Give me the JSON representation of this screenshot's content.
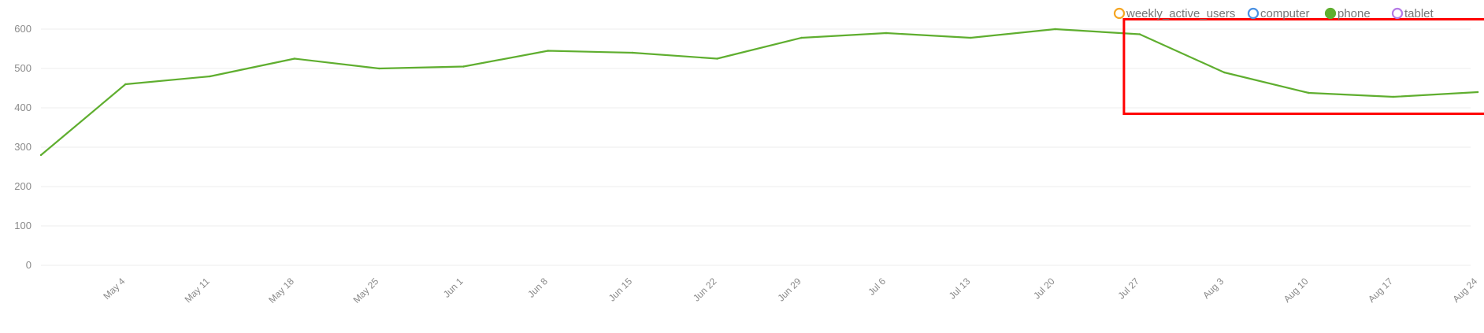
{
  "chart_data": {
    "type": "line",
    "title": "",
    "xlabel": "",
    "ylabel": "",
    "ylim": [
      0,
      600
    ],
    "yticks": [
      0,
      100,
      200,
      300,
      400,
      500,
      600
    ],
    "categories": [
      "",
      "May 4",
      "May 11",
      "May 18",
      "May 25",
      "Jun 1",
      "Jun 8",
      "Jun 15",
      "Jun 22",
      "Jun 29",
      "Jul 6",
      "Jul 13",
      "Jul 20",
      "Jul 27",
      "Aug 3",
      "Aug 10",
      "Aug 17",
      "Aug 24"
    ],
    "grid": true,
    "legend_position": "top-right",
    "legend": [
      {
        "name": "weekly_active_users",
        "color": "#F5A623",
        "filled": false
      },
      {
        "name": "computer",
        "color": "#4A90E2",
        "filled": false
      },
      {
        "name": "phone",
        "color": "#5FAE2F",
        "filled": true
      },
      {
        "name": "tablet",
        "color": "#B57BE6",
        "filled": false
      }
    ],
    "series": [
      {
        "name": "phone",
        "color": "#5FAE2F",
        "values": [
          280,
          460,
          480,
          525,
          500,
          505,
          545,
          540,
          525,
          578,
          590,
          578,
          600,
          587,
          490,
          438,
          428,
          440
        ]
      }
    ],
    "annotation": {
      "type": "highlight-box",
      "color": "#FF0000",
      "from_category": "Jul 27",
      "to_category": "Aug 24",
      "y_range": [
        385,
        625
      ]
    }
  }
}
